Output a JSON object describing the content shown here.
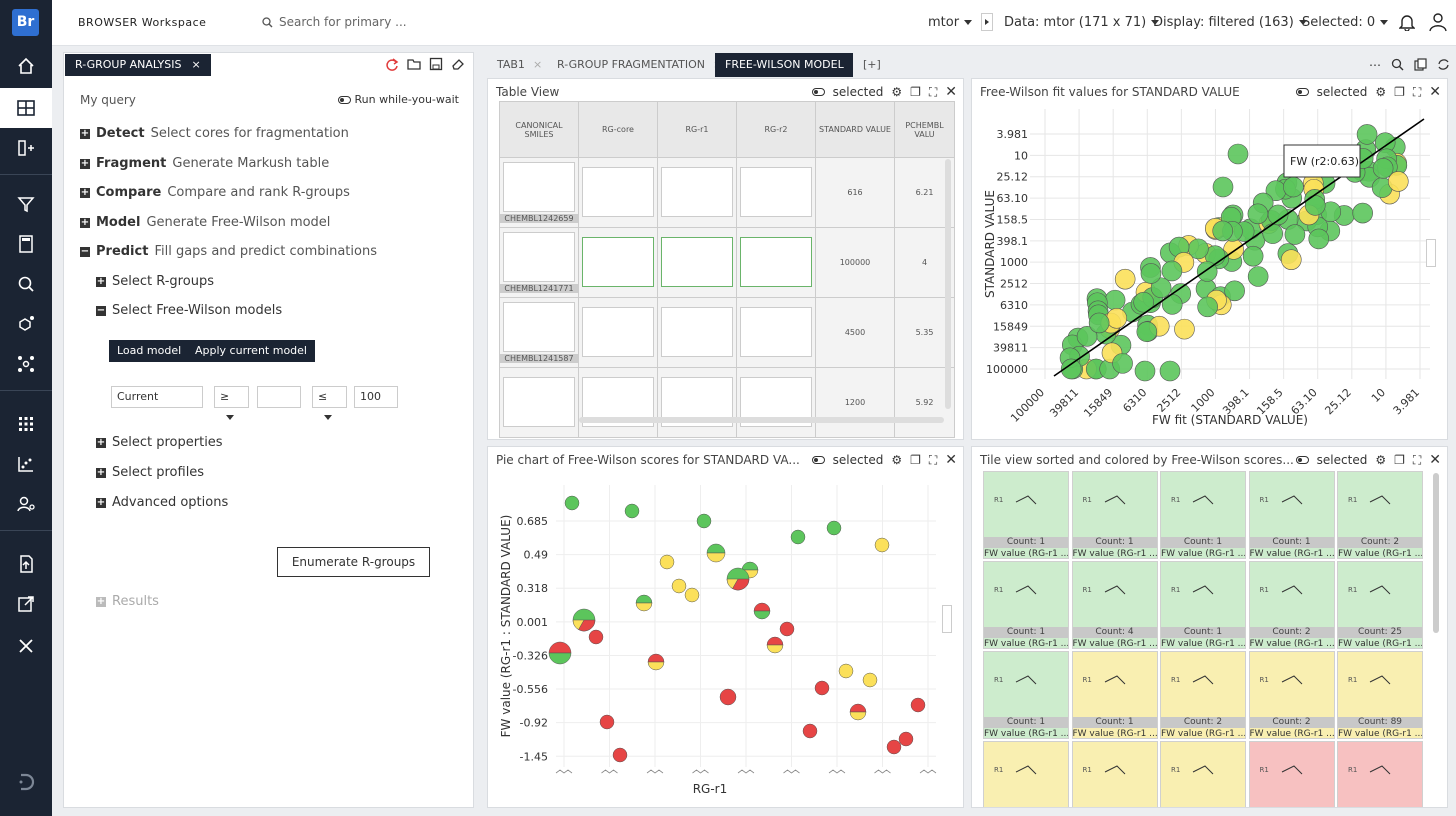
{
  "app": {
    "logo": "Br",
    "brand": "BROWSER Workspace",
    "search_placeholder": "Search for primary ...",
    "workspace": "mtor",
    "data": "Data: mtor (171 x 71)",
    "display": "Display: filtered (163)",
    "selected": "Selected: 0"
  },
  "left": {
    "tab": "R-GROUP ANALYSIS",
    "my_query": "My query",
    "run_toggle": "Run while-you-wait",
    "sections": [
      {
        "title": "Detect",
        "desc": "Select cores for fragmentation"
      },
      {
        "title": "Fragment",
        "desc": "Generate Markush table"
      },
      {
        "title": "Compare",
        "desc": "Compare and rank R-groups"
      },
      {
        "title": "Model",
        "desc": "Generate Free-Wilson model"
      },
      {
        "title": "Predict",
        "desc": "Fill gaps and predict combinations"
      }
    ],
    "sub": [
      "Select R-groups",
      "Select Free-Wilson models"
    ],
    "load": "Load model",
    "apply": "Apply current model",
    "filter": {
      "field": "Current",
      "op1": "≥",
      "val1": "",
      "op2": "≤",
      "val2": "100"
    },
    "sub2": [
      "Select properties",
      "Select profiles",
      "Advanced options"
    ],
    "enumerate": "Enumerate R-groups",
    "results": "Results"
  },
  "tabs": [
    {
      "label": "TAB1"
    },
    {
      "label": "R-GROUP FRAGMENTATION"
    },
    {
      "label": "FREE-WILSON MODEL"
    },
    {
      "label": "[+]"
    }
  ],
  "selected_label": "selected",
  "table": {
    "title": "Table View",
    "headers": [
      "CANONICAL SMILES",
      "RG-core",
      "RG-r1",
      "RG-r2",
      "STANDARD VALUE",
      "PCHEMBL VALU"
    ],
    "rows": [
      {
        "id": "CHEMBL1242659",
        "sv": "616",
        "pc": "6.21"
      },
      {
        "id": "CHEMBL1241771",
        "sv": "100000",
        "pc": "4"
      },
      {
        "id": "CHEMBL1241587",
        "sv": "4500",
        "pc": "5.35"
      },
      {
        "id": "",
        "sv": "1200",
        "pc": "5.92"
      }
    ]
  },
  "scatter": {
    "title": "Free-Wilson fit values for STANDARD VALUE",
    "tooltip": "FW (r2:0.63)",
    "colors": {
      "green": "#5cc55c",
      "yellow": "#fbe05a",
      "red": "#e64545"
    },
    "chart_data": {
      "type": "scatter",
      "xlabel": "FW fit (STANDARD VALUE)",
      "ylabel": "STANDARD VALUE",
      "x_ticks": [
        "100000",
        "39811",
        "15849",
        "6310",
        "2512",
        "1000",
        "398.1",
        "158.5",
        "63.10",
        "25.12",
        "10",
        "3.981"
      ],
      "y_ticks": [
        "3.981",
        "10",
        "25.12",
        "63.10",
        "158.5",
        "398.1",
        "1000",
        "2512",
        "6310",
        "15849",
        "39811",
        "100000"
      ]
    }
  },
  "pie": {
    "title": "Pie chart of Free-Wilson scores for STANDARD VA...",
    "chart_data": {
      "type": "scatter",
      "xlabel": "RG-r1",
      "ylabel": "FW value (RG-r1 : STANDARD VALUE)",
      "y_ticks": [
        "0.685",
        "0.49",
        "0.318",
        "0.001",
        "-0.326",
        "-0.556",
        "-0.92",
        "-1.45"
      ]
    }
  },
  "tileview": {
    "title": "Tile view sorted and colored by Free-Wilson scores...",
    "fw": "FW value (RG-r1 ...",
    "tiles": [
      {
        "c": "g",
        "count": "Count: 1"
      },
      {
        "c": "g",
        "count": "Count: 1"
      },
      {
        "c": "g",
        "count": "Count: 1"
      },
      {
        "c": "g",
        "count": "Count: 1"
      },
      {
        "c": "g",
        "count": "Count: 2"
      },
      {
        "c": "g",
        "count": "Count: 1"
      },
      {
        "c": "g",
        "count": "Count: 4"
      },
      {
        "c": "g",
        "count": "Count: 1"
      },
      {
        "c": "g",
        "count": "Count: 2"
      },
      {
        "c": "g",
        "count": "Count: 25"
      },
      {
        "c": "g",
        "count": "Count: 1"
      },
      {
        "c": "y",
        "count": "Count: 1"
      },
      {
        "c": "y",
        "count": "Count: 2"
      },
      {
        "c": "y",
        "count": "Count: 2"
      },
      {
        "c": "y",
        "count": "Count: 89"
      },
      {
        "c": "y",
        "count": ""
      },
      {
        "c": "y",
        "count": ""
      },
      {
        "c": "y",
        "count": ""
      },
      {
        "c": "r",
        "count": ""
      },
      {
        "c": "r",
        "count": ""
      }
    ]
  }
}
